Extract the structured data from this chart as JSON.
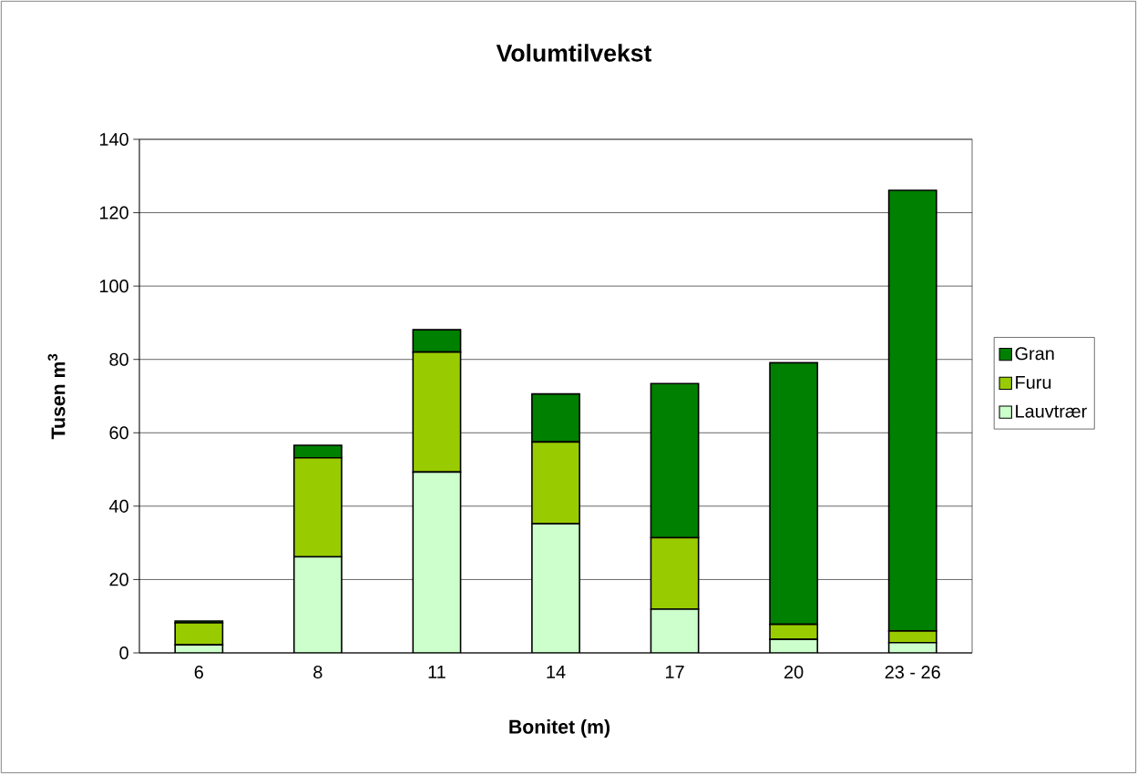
{
  "chart_data": {
    "type": "bar",
    "stacked": true,
    "title": "Volumtilvekst",
    "xlabel": "Bonitet (m)",
    "ylabel": "Tusen m$^{3}$",
    "categories": [
      "6",
      "8",
      "11",
      "14",
      "17",
      "20",
      "23 - 26"
    ],
    "series": [
      {
        "name": "Lauvtrær",
        "color": "#ccffcc",
        "values": [
          2.2,
          26.2,
          49.3,
          35.2,
          11.9,
          3.7,
          2.8
        ]
      },
      {
        "name": "Furu",
        "color": "#99cc00",
        "values": [
          6.0,
          27.0,
          32.7,
          22.3,
          19.5,
          4.1,
          3.2
        ]
      },
      {
        "name": "Gran",
        "color": "#008000",
        "values": [
          0.5,
          3.4,
          6.1,
          13.1,
          42.0,
          71.3,
          120.1
        ]
      }
    ],
    "ylim": [
      0,
      140
    ],
    "yticks": [
      0,
      20,
      40,
      60,
      80,
      100,
      120,
      140
    ],
    "grid": "y",
    "legend": "right"
  }
}
